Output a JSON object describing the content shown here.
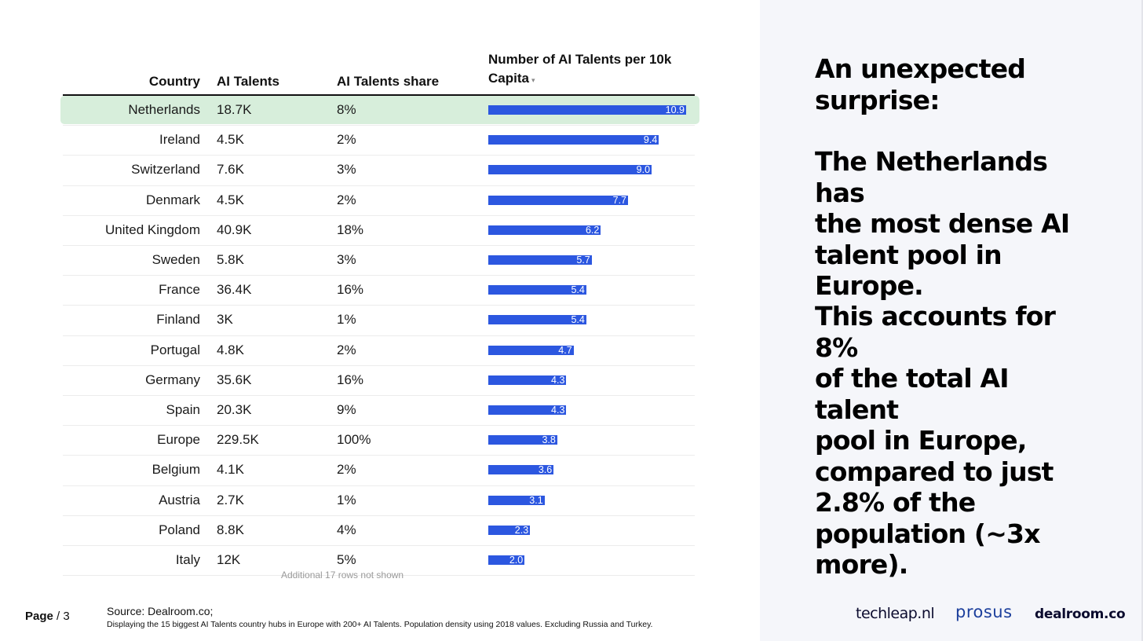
{
  "table": {
    "columns": {
      "country": "Country",
      "talents": "AI Talents",
      "share": "AI Talents share",
      "density_line1": "Number of AI Talents per 10k",
      "density_line2": "Capita",
      "sort_icon": "▾"
    },
    "max_density": 10.9,
    "rows": [
      {
        "country": "Netherlands",
        "talents": "18.7K",
        "share": "8%",
        "density": 10.9,
        "density_label": "10.9"
      },
      {
        "country": "Ireland",
        "talents": "4.5K",
        "share": "2%",
        "density": 9.4,
        "density_label": "9.4"
      },
      {
        "country": "Switzerland",
        "talents": "7.6K",
        "share": "3%",
        "density": 9.0,
        "density_label": "9.0"
      },
      {
        "country": "Denmark",
        "talents": "4.5K",
        "share": "2%",
        "density": 7.7,
        "density_label": "7.7"
      },
      {
        "country": "United Kingdom",
        "talents": "40.9K",
        "share": "18%",
        "density": 6.2,
        "density_label": "6.2"
      },
      {
        "country": "Sweden",
        "talents": "5.8K",
        "share": "3%",
        "density": 5.7,
        "density_label": "5.7"
      },
      {
        "country": "France",
        "talents": "36.4K",
        "share": "16%",
        "density": 5.4,
        "density_label": "5.4"
      },
      {
        "country": "Finland",
        "talents": "3K",
        "share": "1%",
        "density": 5.4,
        "density_label": "5.4"
      },
      {
        "country": "Portugal",
        "talents": "4.8K",
        "share": "2%",
        "density": 4.7,
        "density_label": "4.7"
      },
      {
        "country": "Germany",
        "talents": "35.6K",
        "share": "16%",
        "density": 4.3,
        "density_label": "4.3"
      },
      {
        "country": "Spain",
        "talents": "20.3K",
        "share": "9%",
        "density": 4.3,
        "density_label": "4.3"
      },
      {
        "country": "Europe",
        "talents": "229.5K",
        "share": "100%",
        "density": 3.8,
        "density_label": "3.8"
      },
      {
        "country": "Belgium",
        "talents": "4.1K",
        "share": "2%",
        "density": 3.6,
        "density_label": "3.6"
      },
      {
        "country": "Austria",
        "talents": "2.7K",
        "share": "1%",
        "density": 3.1,
        "density_label": "3.1"
      },
      {
        "country": "Poland",
        "talents": "8.8K",
        "share": "4%",
        "density": 2.3,
        "density_label": "2.3"
      },
      {
        "country": "Italy",
        "talents": "12K",
        "share": "5%",
        "density": 2.0,
        "density_label": "2.0"
      }
    ],
    "note": "Additional 17 rows not shown"
  },
  "headline": {
    "p1_line1": "An unexpected",
    "p1_line2": "surprise:",
    "p2_line1": "The Netherlands has",
    "p2_line2": "the most dense AI",
    "p2_line3": "talent pool in",
    "p2_line4": "Europe.",
    "p3_line1": "This accounts for 8%",
    "p3_line2": "of the total AI talent",
    "p3_line3": "pool in Europe,",
    "p3_line4": "compared to just",
    "p3_line5": "2.8% of the",
    "p3_line6": "population (~3x",
    "p3_line7": "more)."
  },
  "footer": {
    "page_word": "Page",
    "page_sep": "/ 3",
    "source": "Source:  Dealroom.co;",
    "footnote": "Displaying the 15 biggest AI Talents country hubs in Europe with 200+ AI Talents. Population density using 2018 values. Excluding  Russia and Turkey."
  },
  "logos": {
    "techleap": "techleap.nl",
    "prosus": "prosus",
    "dealroom": "dealroom.co"
  }
}
